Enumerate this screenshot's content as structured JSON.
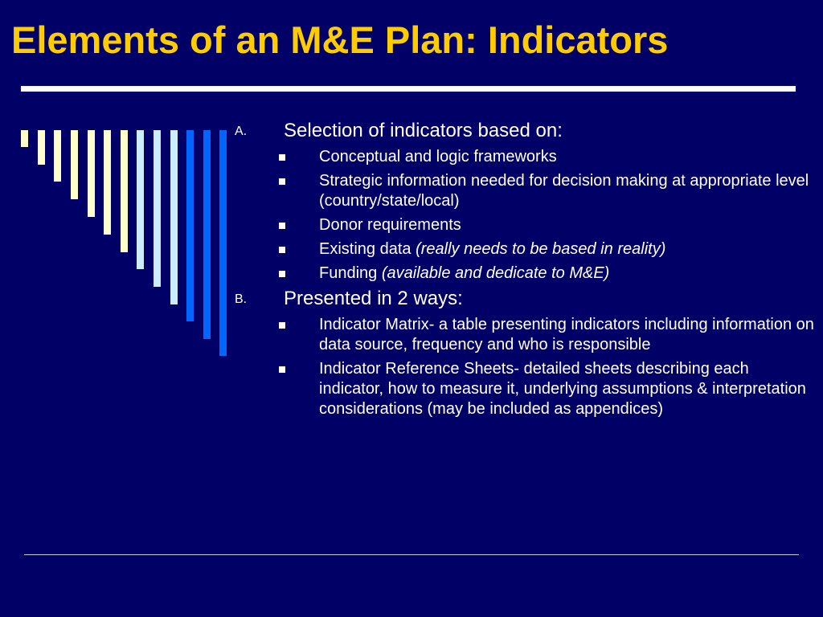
{
  "slide": {
    "title": "Elements of an M&E Plan: Indicators"
  },
  "decor": {
    "colors": {
      "background": "#000066",
      "title": "#FFCC00",
      "bar_cream": "#FFFFCC",
      "bar_light_blue": "#CCECFF",
      "bar_blue": "#0066FF"
    }
  },
  "sections": [
    {
      "marker": "A.",
      "heading": "Selection of indicators based on:",
      "bullets": [
        {
          "text": "Conceptual and logic frameworks",
          "emphasis": ""
        },
        {
          "text": "Strategic information needed for decision making at appropriate level (country/state/local)",
          "emphasis": ""
        },
        {
          "text": "Donor requirements",
          "emphasis": ""
        },
        {
          "text": "Existing data ",
          "emphasis": "(really needs to be based in reality)"
        },
        {
          "text": "Funding ",
          "emphasis": "(available and dedicate to M&E)"
        }
      ]
    },
    {
      "marker": "B.",
      "heading": "Presented in 2 ways:",
      "bullets": [
        {
          "text": "Indicator Matrix- a table presenting indicators including information on data source, frequency and who is responsible",
          "emphasis": ""
        },
        {
          "text": "Indicator Reference Sheets- detailed sheets describing each indicator, how to measure it, underlying assumptions & interpretation considerations (may be included as appendices)",
          "emphasis": ""
        }
      ]
    }
  ]
}
